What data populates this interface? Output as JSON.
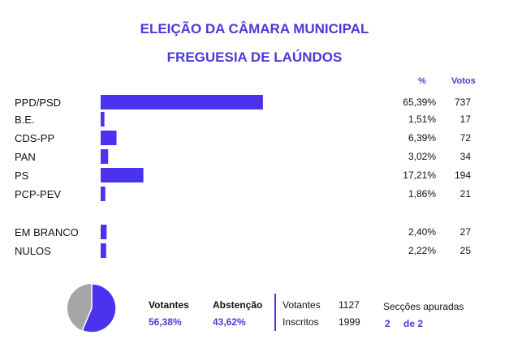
{
  "header": {
    "title": "ELEIÇÃO DA CÂMARA MUNICIPAL",
    "subtitle": "FREGUESIA DE LAÚNDOS",
    "pct_label": "%",
    "votes_label": "Votos"
  },
  "chart_data": {
    "type": "bar",
    "orientation": "horizontal",
    "categories": [
      "PPD/PSD",
      "B.E.",
      "CDS-PP",
      "PAN",
      "PS",
      "PCP-PEV",
      "EM BRANCO",
      "NULOS"
    ],
    "percent_labels": [
      "65,39%",
      "1,51%",
      "6,39%",
      "3,02%",
      "17,21%",
      "1,86%",
      "2,40%",
      "2,22%"
    ],
    "votes": [
      737,
      17,
      72,
      34,
      194,
      21,
      27,
      25
    ],
    "bar_color": "#4b32ee"
  },
  "turnout": {
    "votantes_label": "Votantes",
    "votantes_pct": "56,38%",
    "abstencao_label": "Abstenção",
    "abstencao_pct": "43,62%",
    "pie": {
      "votantes_fraction": 0.5638,
      "votantes_color": "#4b32ee",
      "abstencao_color": "#a6a6a6"
    }
  },
  "totals": {
    "votantes_label": "Votantes",
    "votantes_value": "1127",
    "inscritos_label": "Inscritos",
    "inscritos_value": "1999",
    "seccoes_label": "Secções apuradas",
    "seccoes_done": "2",
    "seccoes_total": "de 2"
  }
}
